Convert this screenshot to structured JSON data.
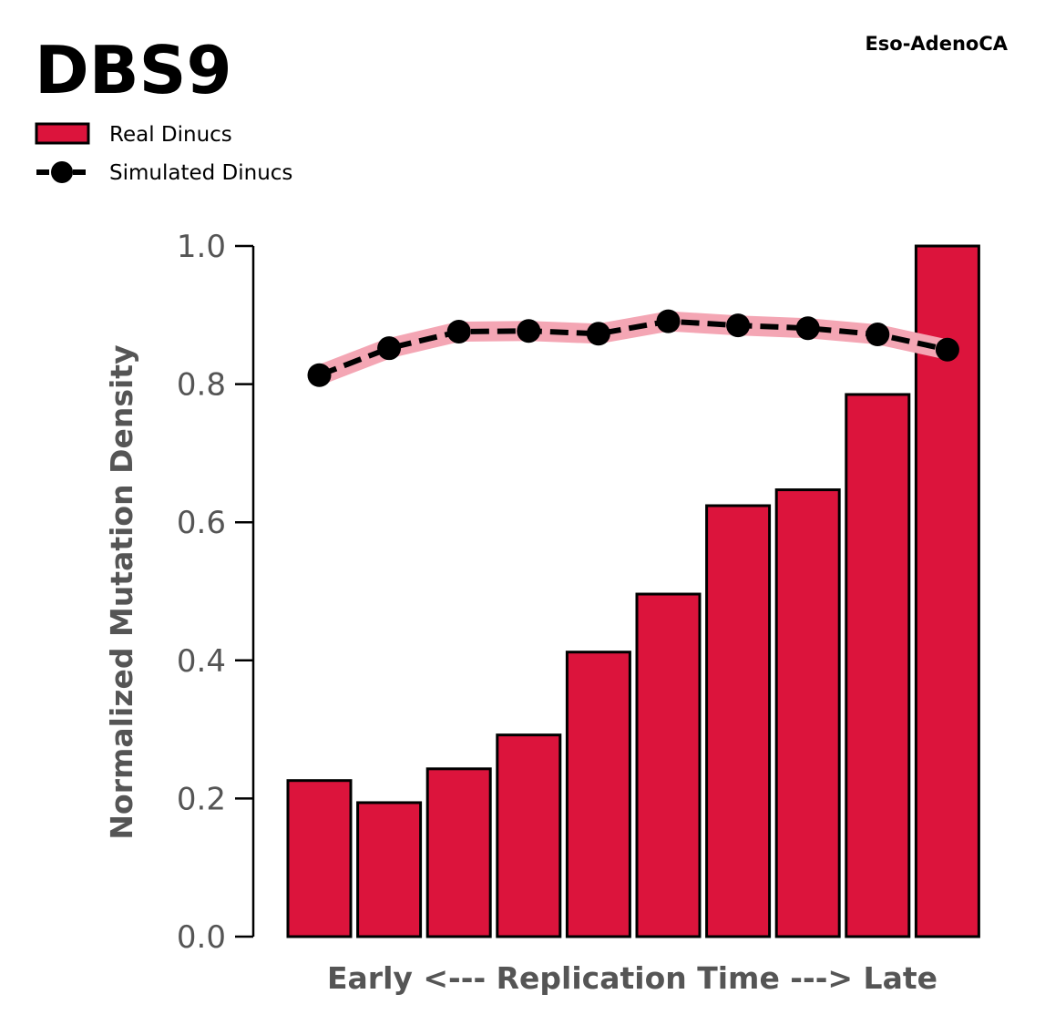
{
  "chart_data": {
    "type": "bar",
    "title": "DBS9",
    "subtitle": "Eso-AdenoCA",
    "xlabel": "Early <--- Replication Time ---> Late",
    "ylabel": "Normalized Mutation Density",
    "ylim": [
      0,
      1.0
    ],
    "yticks": [
      "0.0",
      "0.2",
      "0.4",
      "0.6",
      "0.8",
      "1.0"
    ],
    "grid": false,
    "legend_placement": "top-left",
    "x": [
      1,
      2,
      3,
      4,
      5,
      6,
      7,
      8,
      9,
      10
    ],
    "series": [
      {
        "name": "Real Dinucs",
        "kind": "bar",
        "color": "#dc143c",
        "values": [
          0.226,
          0.194,
          0.243,
          0.292,
          0.412,
          0.496,
          0.624,
          0.647,
          0.785,
          1.0
        ]
      },
      {
        "name": "Simulated Dinucs",
        "kind": "line",
        "color": "#000000",
        "band_color": "#f4a6b4",
        "values": [
          0.813,
          0.852,
          0.876,
          0.877,
          0.873,
          0.891,
          0.885,
          0.881,
          0.872,
          0.85
        ]
      }
    ]
  }
}
